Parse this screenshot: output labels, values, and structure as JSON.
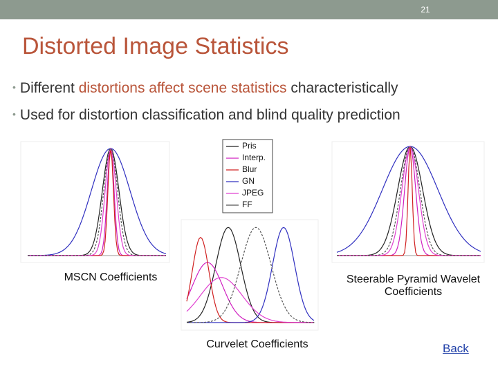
{
  "header": {
    "page_number": "21"
  },
  "title": "Distorted Image Statistics",
  "bullets": [
    [
      "Different ",
      "distortions affect scene statistics",
      " characteristically"
    ],
    [
      "Used for distortion classification and blind quality prediction"
    ]
  ],
  "legend": [
    {
      "label": "Pris",
      "color": "#222222"
    },
    {
      "label": "Interp.",
      "color": "#d020c0"
    },
    {
      "label": "Blur",
      "color": "#d02020"
    },
    {
      "label": "GN",
      "color": "#3030c0"
    },
    {
      "label": "JPEG",
      "color": "#e040d0"
    },
    {
      "label": "FF",
      "color": "#555555"
    }
  ],
  "captions": {
    "mscn": "MSCN Coefficients",
    "steerable": "Steerable Pyramid Wavelet Coefficients",
    "curvelet": "Curvelet Coefficients"
  },
  "link": "Back"
}
